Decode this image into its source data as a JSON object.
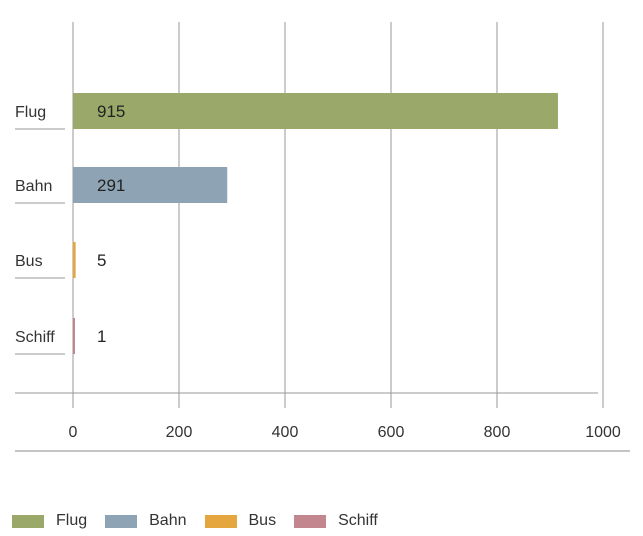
{
  "chart_data": {
    "type": "bar",
    "orientation": "horizontal",
    "categories": [
      "Flug",
      "Bahn",
      "Bus",
      "Schiff"
    ],
    "values": [
      915,
      291,
      5,
      1
    ],
    "data_labels": [
      "915",
      "291",
      "5",
      "1"
    ],
    "colors": [
      "#9aa86a",
      "#8ea3b4",
      "#e6a63f",
      "#c3868f"
    ],
    "xlim": [
      0,
      1000
    ],
    "x_ticks": [
      0,
      200,
      400,
      600,
      800,
      1000
    ],
    "x_tick_labels": [
      "0",
      "200",
      "400",
      "600",
      "800",
      "1000"
    ],
    "grid": true,
    "legend_position": "bottom-left",
    "legend": [
      "Flug",
      "Bahn",
      "Bus",
      "Schiff"
    ]
  }
}
